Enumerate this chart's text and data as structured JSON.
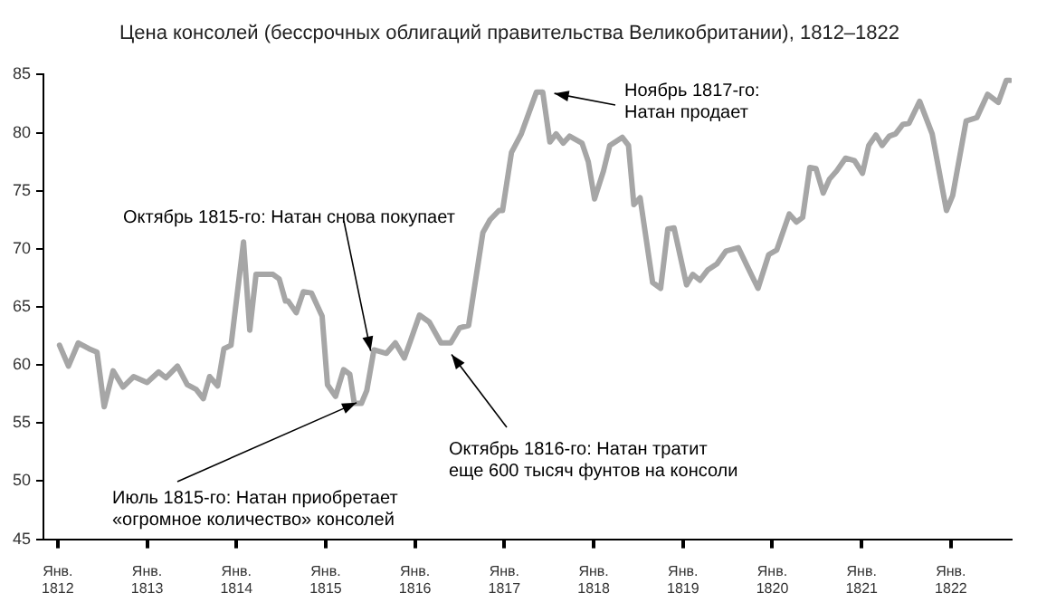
{
  "chart_data": {
    "type": "line",
    "title": "Цена консолей (бессрочных облигаций правительства Великобритании), 1812–1822",
    "xlim": [
      1811.84,
      1822.68
    ],
    "xticks": [
      {
        "value": 1812,
        "label": "Янв.\n1812"
      },
      {
        "value": 1813,
        "label": "Янв.\n1813"
      },
      {
        "value": 1814,
        "label": "Янв.\n1814"
      },
      {
        "value": 1815,
        "label": "Янв.\n1815"
      },
      {
        "value": 1816,
        "label": "Янв.\n1816"
      },
      {
        "value": 1817,
        "label": "Янв.\n1817"
      },
      {
        "value": 1818,
        "label": "Янв.\n1818"
      },
      {
        "value": 1819,
        "label": "Янв.\n1819"
      },
      {
        "value": 1820,
        "label": "Янв.\n1820"
      },
      {
        "value": 1821,
        "label": "Янв.\n1821"
      },
      {
        "value": 1822,
        "label": "Янв.\n1822"
      }
    ],
    "ylim": [
      45,
      85
    ],
    "yticks": [
      45,
      50,
      55,
      60,
      65,
      70,
      75,
      80,
      85
    ],
    "grid": false,
    "legend": false,
    "marker": "none",
    "line_style": "solid",
    "series": [
      {
        "color": "#a6a6a6",
        "x": [
          1812.02,
          1812.12,
          1812.23,
          1812.35,
          1812.44,
          1812.52,
          1812.62,
          1812.73,
          1812.85,
          1813.0,
          1813.13,
          1813.21,
          1813.34,
          1813.45,
          1813.55,
          1813.63,
          1813.7,
          1813.79,
          1813.86,
          1813.94,
          1814.08,
          1814.15,
          1814.22,
          1814.41,
          1814.48,
          1814.55,
          1814.58,
          1814.67,
          1814.75,
          1814.84,
          1814.96,
          1815.02,
          1815.11,
          1815.2,
          1815.27,
          1815.32,
          1815.4,
          1815.46,
          1815.54,
          1815.68,
          1815.78,
          1815.88,
          1815.95,
          1816.05,
          1816.16,
          1816.29,
          1816.4,
          1816.5,
          1816.6,
          1816.76,
          1816.84,
          1816.94,
          1816.98,
          1817.08,
          1817.19,
          1817.36,
          1817.43,
          1817.51,
          1817.58,
          1817.66,
          1817.73,
          1817.87,
          1817.94,
          1818.01,
          1818.11,
          1818.18,
          1818.32,
          1818.39,
          1818.45,
          1818.52,
          1818.66,
          1818.75,
          1818.83,
          1818.9,
          1819.04,
          1819.11,
          1819.19,
          1819.28,
          1819.38,
          1819.48,
          1819.62,
          1819.72,
          1819.84,
          1819.96,
          1820.05,
          1820.19,
          1820.27,
          1820.34,
          1820.42,
          1820.49,
          1820.57,
          1820.64,
          1820.72,
          1820.82,
          1820.92,
          1821.01,
          1821.08,
          1821.16,
          1821.23,
          1821.31,
          1821.38,
          1821.46,
          1821.53,
          1821.65,
          1821.79,
          1821.95,
          1822.02,
          1822.17,
          1822.29,
          1822.41,
          1822.53,
          1822.62,
          1822.66
        ],
        "values": [
          61.7,
          59.9,
          61.9,
          61.4,
          61.1,
          56.4,
          59.5,
          58.1,
          59.0,
          58.5,
          59.4,
          58.9,
          59.9,
          58.3,
          57.9,
          57.1,
          59.0,
          58.2,
          61.4,
          61.7,
          70.6,
          63.0,
          67.8,
          67.8,
          67.4,
          65.5,
          65.5,
          64.5,
          66.3,
          66.2,
          64.2,
          58.3,
          57.3,
          59.6,
          59.2,
          56.7,
          56.7,
          57.8,
          61.3,
          61.0,
          61.9,
          60.6,
          62.1,
          64.3,
          63.7,
          61.9,
          61.9,
          63.2,
          63.4,
          71.4,
          72.5,
          73.3,
          73.3,
          78.3,
          79.9,
          83.5,
          83.5,
          79.2,
          79.9,
          79.1,
          79.7,
          79.1,
          77.5,
          74.3,
          76.7,
          78.9,
          79.6,
          78.9,
          73.8,
          74.4,
          67.1,
          66.6,
          71.7,
          71.8,
          66.9,
          67.8,
          67.3,
          68.2,
          68.7,
          69.8,
          70.1,
          68.5,
          66.6,
          69.5,
          69.9,
          73.0,
          72.3,
          72.7,
          77.0,
          76.9,
          74.8,
          76.0,
          76.7,
          77.8,
          77.6,
          76.5,
          78.9,
          79.8,
          78.9,
          79.7,
          79.9,
          80.7,
          80.8,
          82.7,
          79.9,
          73.3,
          74.6,
          81.0,
          81.3,
          83.3,
          82.6,
          84.5,
          84.5
        ]
      }
    ],
    "annotations": [
      {
        "text": "Июль 1815-го: Натан приобретает\n«огромное количество» консолей",
        "x": 1815.42,
        "y": 57.0
      },
      {
        "text": "Октябрь 1815-го: Натан снова покупает",
        "x": 1815.52,
        "y": 60.6
      },
      {
        "text": "Октябрь 1816-го: Натан тратит\nеще 600 тысяч фунтов на консоли",
        "x": 1816.36,
        "y": 61.4
      },
      {
        "text": "Ноябрь 1817-го:\nНатан продает",
        "x": 1817.48,
        "y": 83.5
      }
    ]
  }
}
